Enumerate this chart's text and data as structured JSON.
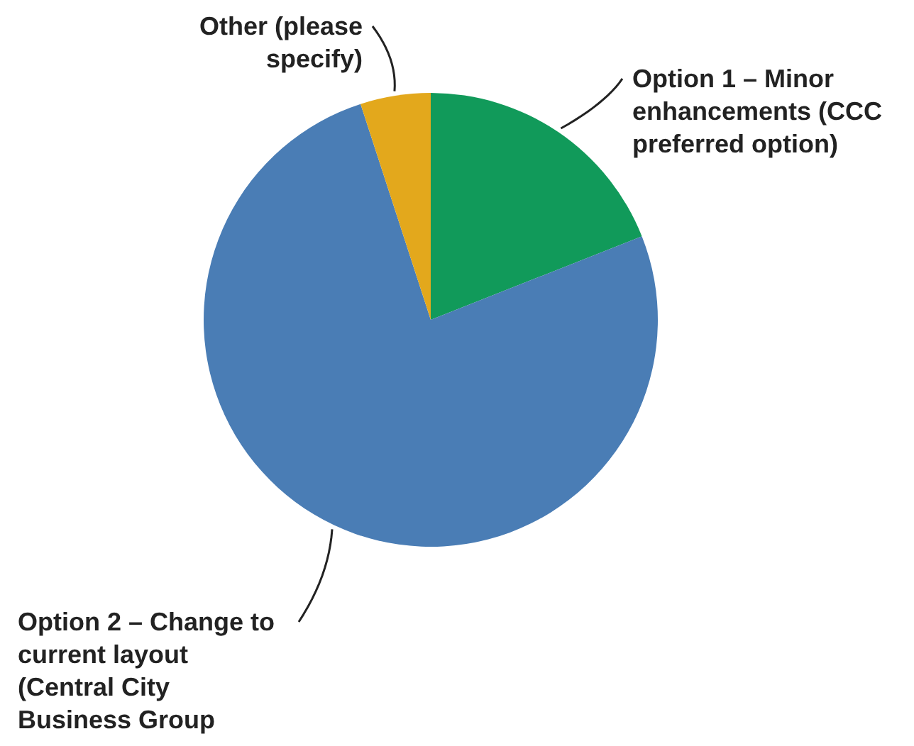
{
  "chart_data": {
    "type": "pie",
    "categories": [
      "Option 1 – Minor enhancements (CCC preferred option)",
      "Option 2 – Change to current layout (Central City Business Group",
      "Other (please specify)"
    ],
    "values": [
      19,
      76,
      5
    ],
    "colors": [
      "#119a5a",
      "#4a7db5",
      "#e3a81c"
    ]
  }
}
